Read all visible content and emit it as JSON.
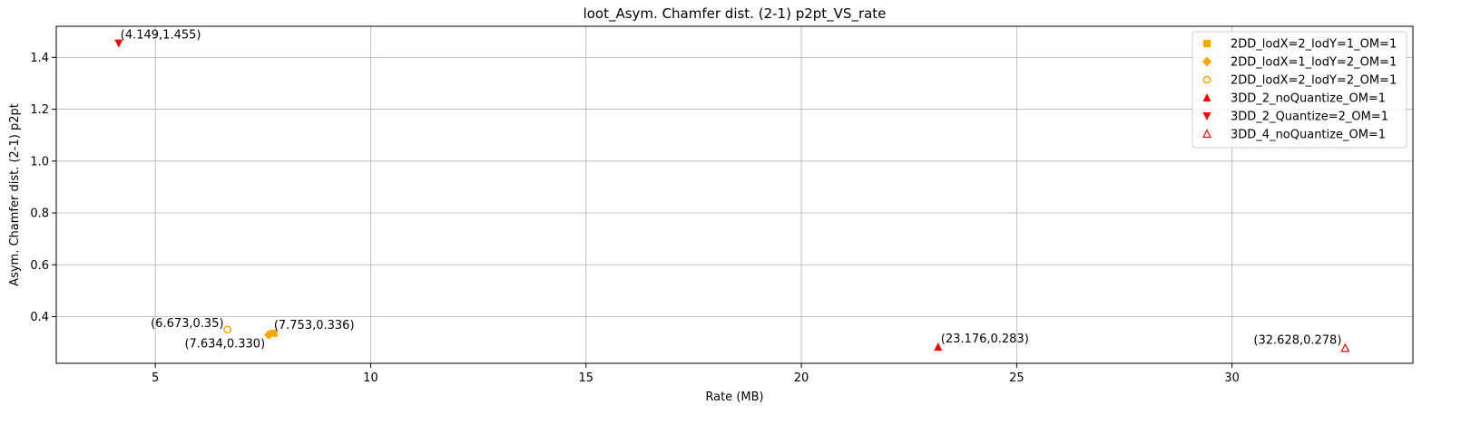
{
  "chart_data": {
    "type": "scatter",
    "title": "loot_Asym. Chamfer dist. (2-1) p2pt_VS_rate",
    "xlabel": "Rate (MB)",
    "ylabel": "Asym. Chamfer dist. (2-1) p2pt",
    "xlim": [
      2.7,
      34.2
    ],
    "ylim": [
      0.22,
      1.52
    ],
    "xticks": [
      5,
      10,
      15,
      20,
      25,
      30
    ],
    "xtick_labels": [
      "5",
      "10",
      "15",
      "20",
      "25",
      "30"
    ],
    "yticks": [
      0.4,
      0.6,
      0.8,
      1.0,
      1.2,
      1.4
    ],
    "ytick_labels": [
      "0.4",
      "0.6",
      "0.8",
      "1.0",
      "1.2",
      "1.4"
    ],
    "grid": true,
    "legend_position": "top-right",
    "series": [
      {
        "name": "2DD_lodX=2_lodY=1_OM=1",
        "marker": "square",
        "color": "#FFA500",
        "filled": true,
        "points": [
          {
            "x": 7.753,
            "y": 0.336,
            "label": "(7.753,0.336)"
          }
        ]
      },
      {
        "name": "2DD_lodX=1_lodY=2_OM=1",
        "marker": "diamond",
        "color": "#FFA500",
        "filled": true,
        "points": [
          {
            "x": 7.634,
            "y": 0.33,
            "label": "(7.634,0.330)"
          }
        ]
      },
      {
        "name": "2DD_lodX=2_lodY=2_OM=1",
        "marker": "octagon-open",
        "color": "#FFA500",
        "filled": false,
        "points": [
          {
            "x": 6.673,
            "y": 0.35,
            "label": "(6.673,0.35)"
          }
        ]
      },
      {
        "name": "3DD_2_noQuantize_OM=1",
        "marker": "triangle-up",
        "color": "#FF0000",
        "filled": true,
        "points": [
          {
            "x": 23.176,
            "y": 0.283,
            "label": "(23.176,0.283)"
          }
        ]
      },
      {
        "name": "3DD_2_Quantize=2_OM=1",
        "marker": "triangle-down",
        "color": "#FF0000",
        "filled": true,
        "points": [
          {
            "x": 4.149,
            "y": 1.455,
            "label": "(4.149,1.455)"
          }
        ]
      },
      {
        "name": "3DD_4_noQuantize_OM=1",
        "marker": "triangle-up-open",
        "color": "#FF0000",
        "filled": false,
        "points": [
          {
            "x": 32.628,
            "y": 0.278,
            "label": "(32.628,0.278)"
          }
        ]
      }
    ]
  }
}
